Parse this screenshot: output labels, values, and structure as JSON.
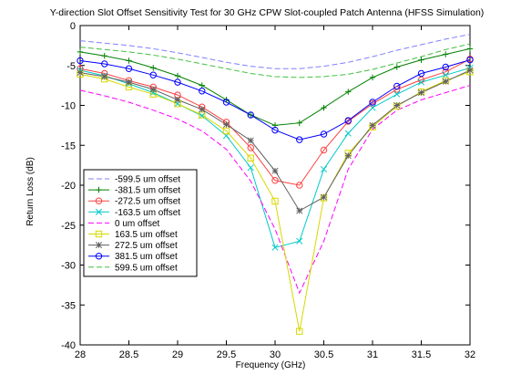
{
  "chart_data": {
    "type": "line",
    "title": "Y-direction Slot Offset Sensitivity Test for 30 GHz CPW Slot-coupled Patch Antenna (HFSS Simulation)",
    "xlabel": "Frequency (GHz)",
    "ylabel": "Return Loss (dB)",
    "xlim": [
      28,
      32
    ],
    "ylim": [
      -40,
      0
    ],
    "xticks": [
      "28",
      "28.5",
      "29",
      "29.5",
      "30",
      "30.5",
      "31",
      "31.5",
      "32"
    ],
    "yticks": [
      "0",
      "-5",
      "-10",
      "-15",
      "-20",
      "-25",
      "-30",
      "-35",
      "-40"
    ],
    "grid": false,
    "legend_position": "lower-left",
    "x": [
      28.0,
      28.25,
      28.5,
      28.75,
      29.0,
      29.25,
      29.5,
      29.75,
      30.0,
      30.25,
      30.5,
      30.75,
      31.0,
      31.25,
      31.5,
      31.75,
      32.0
    ],
    "series": [
      {
        "name": "-599.5 um offset",
        "color": "#8080ff",
        "dash": "6,3",
        "marker": "none",
        "values": [
          -1.9,
          -2.2,
          -2.5,
          -2.9,
          -3.4,
          -4.0,
          -4.6,
          -5.1,
          -5.4,
          -5.4,
          -5.1,
          -4.6,
          -3.9,
          -3.1,
          -2.4,
          -1.7,
          -1.1
        ]
      },
      {
        "name": "-381.5 um offset",
        "color": "#008000",
        "dash": "",
        "marker": "plus",
        "values": [
          -3.3,
          -3.8,
          -4.4,
          -5.3,
          -6.3,
          -7.5,
          -9.3,
          -11.2,
          -12.5,
          -12.2,
          -10.3,
          -8.3,
          -6.5,
          -5.2,
          -4.3,
          -3.6,
          -2.9
        ]
      },
      {
        "name": "-272.5 um offset",
        "color": "#ff4040",
        "dash": "",
        "marker": "circle",
        "values": [
          -5.4,
          -6.0,
          -6.9,
          -7.7,
          -8.7,
          -10.2,
          -12.1,
          -15.3,
          -19.4,
          -20.0,
          -15.6,
          -12.0,
          -9.8,
          -8.0,
          -6.8,
          -5.8,
          -4.2
        ]
      },
      {
        "name": "-163.5 um offset",
        "color": "#00c8c8",
        "dash": "",
        "marker": "x",
        "values": [
          -5.6,
          -6.3,
          -7.3,
          -8.4,
          -9.8,
          -11.3,
          -13.8,
          -17.8,
          -27.8,
          -27.0,
          -18.0,
          -13.5,
          -10.3,
          -8.6,
          -7.1,
          -6.2,
          -5.3
        ]
      },
      {
        "name": "0 um offset",
        "color": "#ff00ff",
        "dash": "6,3",
        "marker": "none",
        "values": [
          -8.1,
          -8.8,
          -9.6,
          -10.6,
          -11.7,
          -13.2,
          -15.5,
          -19.5,
          -25.5,
          -33.5,
          -27.0,
          -18.0,
          -13.0,
          -10.6,
          -9.3,
          -8.4,
          -7.5
        ]
      },
      {
        "name": "163.5 um offset",
        "color": "#d8d800",
        "dash": "",
        "marker": "square",
        "values": [
          -6.1,
          -6.7,
          -7.7,
          -8.6,
          -9.8,
          -11.2,
          -13.2,
          -16.6,
          -22.0,
          -38.3,
          -21.6,
          -16.0,
          -12.7,
          -10.1,
          -8.3,
          -6.9,
          -5.8
        ]
      },
      {
        "name": "272.5 um offset",
        "color": "#606060",
        "dash": "",
        "marker": "star",
        "values": [
          -5.9,
          -6.4,
          -7.1,
          -8.0,
          -9.3,
          -10.5,
          -12.4,
          -14.4,
          -18.2,
          -23.2,
          -21.5,
          -16.3,
          -12.5,
          -10.0,
          -8.4,
          -7.0,
          -5.6
        ]
      },
      {
        "name": "381.5 um offset",
        "color": "#0000ff",
        "dash": "",
        "marker": "circle",
        "values": [
          -4.4,
          -4.8,
          -5.4,
          -6.2,
          -7.1,
          -8.2,
          -9.6,
          -11.2,
          -13.1,
          -14.3,
          -13.6,
          -11.9,
          -9.6,
          -7.6,
          -6.0,
          -5.2,
          -4.3
        ]
      },
      {
        "name": "599.5 um offset",
        "color": "#40c040",
        "dash": "6,3",
        "marker": "none",
        "values": [
          -2.7,
          -3.0,
          -3.3,
          -3.7,
          -4.2,
          -4.8,
          -5.4,
          -6.0,
          -6.4,
          -6.5,
          -6.4,
          -6.1,
          -5.5,
          -4.7,
          -3.9,
          -3.0,
          -2.3
        ]
      }
    ]
  }
}
